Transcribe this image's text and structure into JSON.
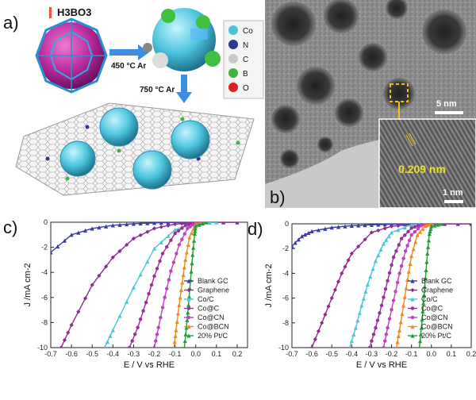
{
  "panels": {
    "a": {
      "letter": "a)",
      "precursor": "H3BO3",
      "step1": "450 °C Ar",
      "step2": "750 °C Ar",
      "element_legend": [
        {
          "label": "Co",
          "color": "#4fc3d9"
        },
        {
          "label": "N",
          "color": "#2b3a8f"
        },
        {
          "label": "C",
          "color": "#c8c8c8"
        },
        {
          "label": "B",
          "color": "#3fb53f"
        },
        {
          "label": "O",
          "color": "#e02020"
        }
      ]
    },
    "b": {
      "letter": "b)",
      "scale_main": "5 nm",
      "scale_inset": "1 nm",
      "lattice": "0.209 nm"
    }
  },
  "chart_data": [
    {
      "panel": "c)",
      "type": "line",
      "xlabel": "E / V vs RHE",
      "ylabel": "J /mA cm-2",
      "xlim": [
        -0.7,
        0.25
      ],
      "ylim": [
        -10,
        0
      ],
      "xticks": [
        "-0.7",
        "-0.6",
        "-0.5",
        "-0.4",
        "-0.3",
        "-0.2",
        "-0.1",
        "0.0",
        "0.1",
        "0.2"
      ],
      "yticks": [
        "0",
        "-2",
        "-4",
        "-6",
        "-8",
        "-10"
      ],
      "legend_position": "bottom-right",
      "series": [
        {
          "name": "Blank GC",
          "color": "#3a3aa8",
          "marker": "triangle",
          "x": [
            -0.7,
            -0.6,
            -0.5,
            -0.4,
            -0.3,
            -0.2,
            -0.1,
            0.0,
            0.2
          ],
          "y": [
            -2.4,
            -1.0,
            -0.5,
            -0.25,
            -0.12,
            -0.05,
            -0.02,
            0.0,
            0.0
          ]
        },
        {
          "name": "Graphene",
          "color": "#8e2b8e",
          "marker": "diamond",
          "x": [
            -0.65,
            -0.6,
            -0.5,
            -0.4,
            -0.3,
            -0.2,
            -0.1,
            0.0,
            0.2
          ],
          "y": [
            -10,
            -8.2,
            -5.0,
            -2.8,
            -1.3,
            -0.5,
            -0.15,
            -0.02,
            0.0
          ]
        },
        {
          "name": "Co/C",
          "color": "#4ac6d8",
          "marker": "triangle",
          "x": [
            -0.44,
            -0.4,
            -0.3,
            -0.2,
            -0.1,
            0.0,
            0.1
          ],
          "y": [
            -10,
            -8.6,
            -5.2,
            -2.1,
            -0.6,
            -0.08,
            0.0
          ]
        },
        {
          "name": "Co@C",
          "color": "#9b2e9b",
          "marker": "circle",
          "x": [
            -0.32,
            -0.28,
            -0.24,
            -0.2,
            -0.16,
            -0.1,
            -0.05,
            0.0,
            0.05
          ],
          "y": [
            -10,
            -8.4,
            -6.4,
            -4.3,
            -2.5,
            -0.9,
            -0.25,
            -0.05,
            0.0
          ]
        },
        {
          "name": "Co@CN",
          "color": "#c040c0",
          "marker": "circle",
          "x": [
            -0.2,
            -0.18,
            -0.15,
            -0.12,
            -0.08,
            -0.04,
            0.0,
            0.05
          ],
          "y": [
            -10,
            -8.4,
            -6.0,
            -3.9,
            -1.8,
            -0.5,
            -0.08,
            0.0
          ]
        },
        {
          "name": "Co@BCN",
          "color": "#f08a1c",
          "marker": "triangle",
          "x": [
            -0.105,
            -0.095,
            -0.08,
            -0.065,
            -0.05,
            -0.03,
            0.0,
            0.05
          ],
          "y": [
            -10,
            -8.6,
            -6.6,
            -4.8,
            -3.0,
            -1.2,
            -0.15,
            0.0
          ]
        },
        {
          "name": "20% Pt/C",
          "color": "#1e9e36",
          "marker": "triangle",
          "x": [
            -0.055,
            -0.045,
            -0.035,
            -0.025,
            -0.015,
            -0.005,
            0.0,
            0.05
          ],
          "y": [
            -10,
            -8.4,
            -6.6,
            -4.6,
            -2.6,
            -0.9,
            -0.3,
            0.0
          ]
        }
      ]
    },
    {
      "panel": "d)",
      "type": "line",
      "xlabel": "E / V vs RHE",
      "ylabel": "J /mA cm-2",
      "xlim": [
        -0.7,
        0.2
      ],
      "ylim": [
        -10,
        0
      ],
      "xticks": [
        "-0.7",
        "-0.6",
        "-0.5",
        "-0.4",
        "-0.3",
        "-0.2",
        "-0.1",
        "0.0",
        "0.1",
        "0.2"
      ],
      "yticks": [
        "0",
        "-2",
        "-4",
        "-6",
        "-8",
        "-10"
      ],
      "legend_position": "bottom-right",
      "series": [
        {
          "name": "Blank GC",
          "color": "#3a3aa8",
          "marker": "triangle",
          "x": [
            -0.7,
            -0.65,
            -0.6,
            -0.5,
            -0.4,
            -0.3,
            -0.2,
            0.0,
            0.2
          ],
          "y": [
            -1.8,
            -1.0,
            -0.6,
            -0.3,
            -0.15,
            -0.08,
            -0.04,
            0.0,
            0.0
          ]
        },
        {
          "name": "Graphene",
          "color": "#8e2b8e",
          "marker": "diamond",
          "x": [
            -0.6,
            -0.55,
            -0.5,
            -0.45,
            -0.4,
            -0.3,
            -0.2,
            -0.1,
            0.0,
            0.2
          ],
          "y": [
            -10,
            -8.0,
            -6.0,
            -4.0,
            -2.4,
            -0.7,
            -0.2,
            -0.05,
            0.0,
            0.0
          ]
        },
        {
          "name": "Co/C",
          "color": "#4ac6d8",
          "marker": "triangle",
          "x": [
            -0.41,
            -0.38,
            -0.35,
            -0.32,
            -0.28,
            -0.24,
            -0.2,
            -0.1,
            0.0
          ],
          "y": [
            -10,
            -8.4,
            -6.6,
            -4.9,
            -3.0,
            -1.6,
            -0.7,
            -0.08,
            0.0
          ]
        },
        {
          "name": "Co@C",
          "color": "#9b2e9b",
          "marker": "circle",
          "x": [
            -0.31,
            -0.28,
            -0.25,
            -0.22,
            -0.19,
            -0.15,
            -0.1,
            -0.05,
            0.0
          ],
          "y": [
            -10,
            -8.4,
            -6.6,
            -4.6,
            -2.7,
            -1.2,
            -0.35,
            -0.05,
            0.0
          ]
        },
        {
          "name": "Co@CN",
          "color": "#c040c0",
          "marker": "circle",
          "x": [
            -0.24,
            -0.22,
            -0.19,
            -0.16,
            -0.13,
            -0.1,
            -0.05,
            0.0
          ],
          "y": [
            -10,
            -8.4,
            -6.2,
            -4.0,
            -2.2,
            -0.9,
            -0.15,
            0.0
          ]
        },
        {
          "name": "Co@BCN",
          "color": "#f08a1c",
          "marker": "triangle",
          "x": [
            -0.175,
            -0.16,
            -0.14,
            -0.12,
            -0.1,
            -0.07,
            -0.03,
            0.0
          ],
          "y": [
            -10,
            -8.6,
            -6.6,
            -4.5,
            -2.6,
            -0.9,
            -0.15,
            0.0
          ]
        },
        {
          "name": "20% Pt/C",
          "color": "#1e9e36",
          "marker": "triangle",
          "x": [
            -0.06,
            -0.05,
            -0.04,
            -0.03,
            -0.02,
            -0.01,
            0.0,
            0.05
          ],
          "y": [
            -10,
            -8.4,
            -6.4,
            -4.4,
            -2.4,
            -0.8,
            -0.2,
            0.0
          ]
        }
      ]
    }
  ]
}
